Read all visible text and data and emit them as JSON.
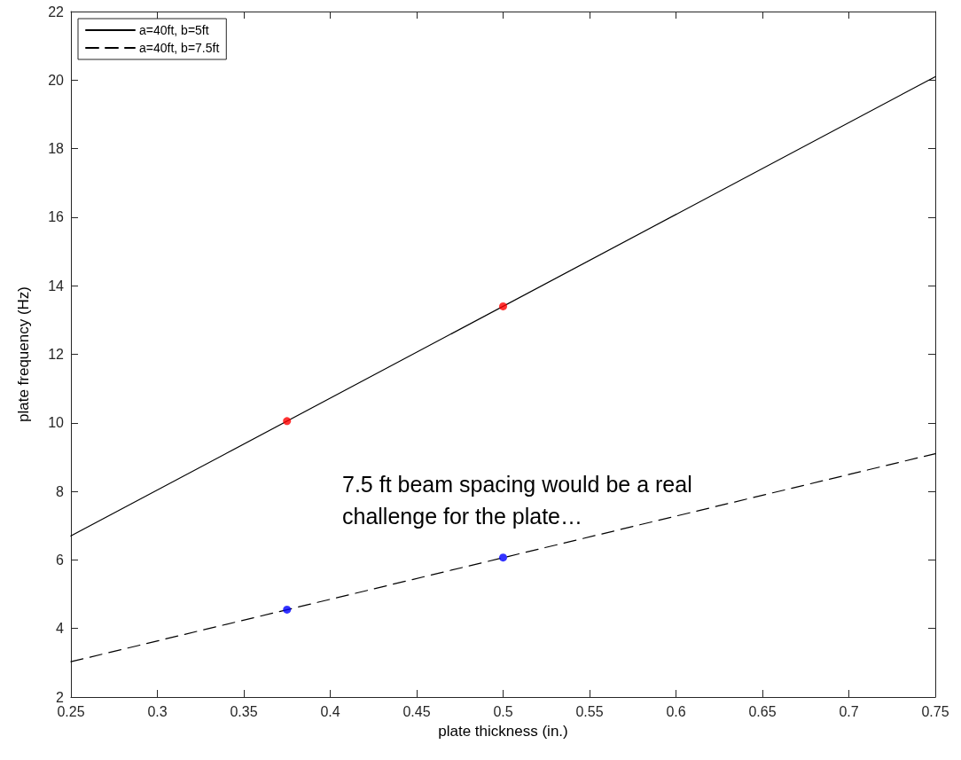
{
  "chart_data": {
    "type": "line",
    "xlabel": "plate thickness (in.)",
    "ylabel": "plate frequency (Hz)",
    "xlim": [
      0.25,
      0.75
    ],
    "xticks": [
      0.25,
      0.3,
      0.35,
      0.4,
      0.45,
      0.5,
      0.55,
      0.6,
      0.65,
      0.7,
      0.75
    ],
    "ylim": [
      2,
      22
    ],
    "yticks": [
      2,
      4,
      6,
      8,
      10,
      12,
      14,
      16,
      18,
      20,
      22
    ],
    "legend": "top left",
    "marker": "none",
    "annotations": [
      "7.5 ft beam spacing would be a real challenge for the plate…"
    ],
    "series": [
      {
        "name": "a=40ft, b=5ft",
        "color": "#000000",
        "line_style": "solid",
        "x": [
          0.25,
          0.75
        ],
        "values": [
          6.7,
          20.1
        ]
      },
      {
        "name": "a=40ft, b=7.5ft",
        "color": "#000000",
        "line_style": "dashed",
        "x": [
          0.25,
          0.75
        ],
        "values": [
          3.03,
          9.1
        ]
      },
      {
        "type": "scatter",
        "color": "#ff0000",
        "marker": "circle",
        "x": [
          0.375,
          0.5
        ],
        "values": [
          10.05,
          13.4
        ]
      },
      {
        "type": "scatter",
        "color": "#0000ff",
        "marker": "circle",
        "x": [
          0.375,
          0.5
        ],
        "values": [
          4.55,
          6.07
        ]
      }
    ]
  }
}
